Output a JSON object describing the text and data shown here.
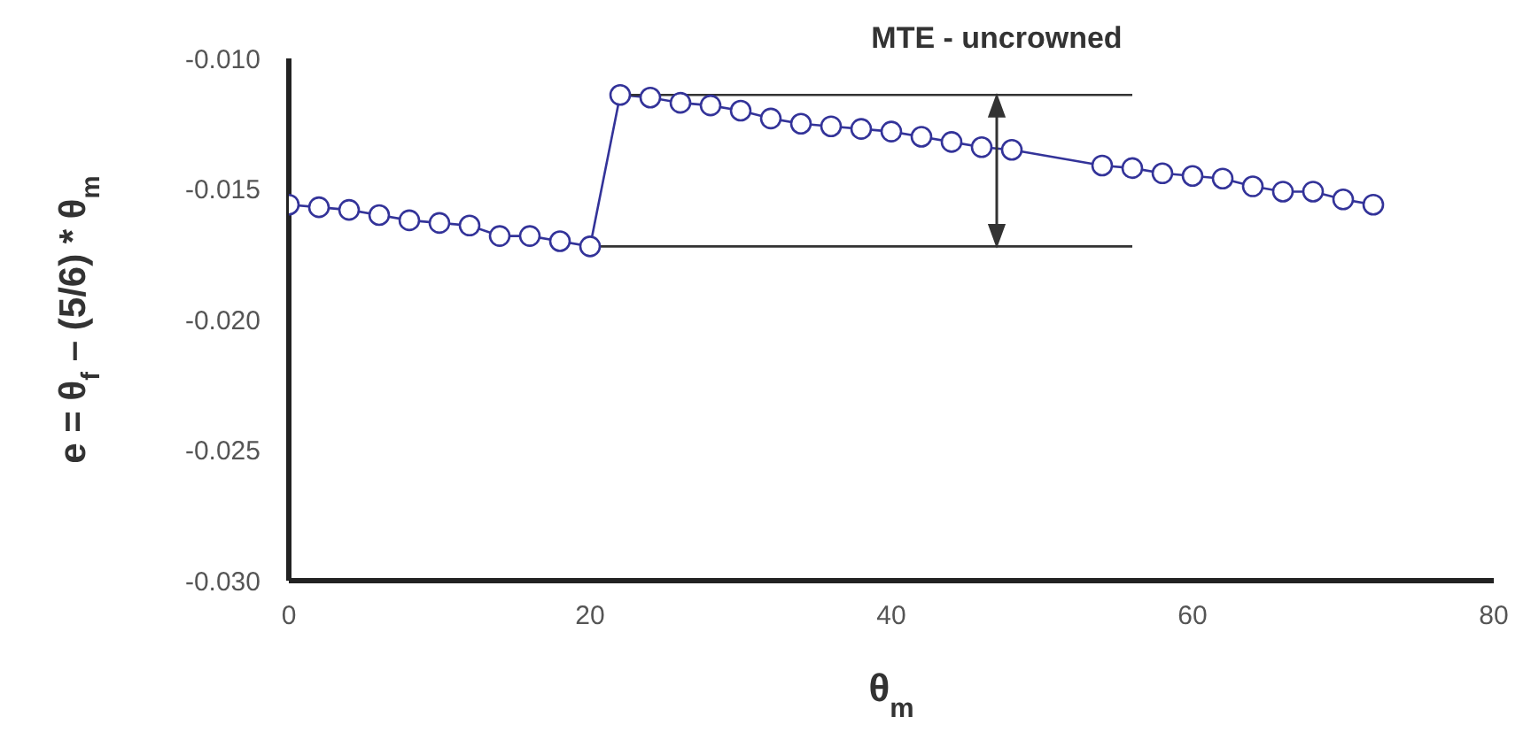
{
  "chart_data": {
    "type": "line",
    "xlabel": "θ$_{m}$",
    "ylabel": "e = θ$_{f}$ – (5/6) * θ$_{m}$",
    "annotations": [
      "MTE - uncrowned"
    ],
    "x": [
      0,
      2,
      4,
      6,
      8,
      10,
      12,
      14,
      16,
      18,
      20,
      22,
      24,
      26,
      28,
      30,
      32,
      34,
      36,
      38,
      40,
      42,
      44,
      46,
      48,
      54,
      56,
      58,
      60,
      62,
      64,
      66,
      68,
      70,
      72
    ],
    "series": [
      {
        "color": "#333399",
        "values": [
          -0.0156,
          -0.0157,
          -0.0158,
          -0.016,
          -0.0162,
          -0.0163,
          -0.0164,
          -0.0168,
          -0.0168,
          -0.017,
          -0.0172,
          -0.0114,
          -0.0115,
          -0.0117,
          -0.0118,
          -0.012,
          -0.0123,
          -0.0125,
          -0.0126,
          -0.0127,
          -0.0128,
          -0.013,
          -0.0132,
          -0.0134,
          -0.0135,
          -0.0141,
          -0.0142,
          -0.0144,
          -0.0145,
          -0.0146,
          -0.0149,
          -0.0151,
          -0.0151,
          -0.0154,
          -0.0156
        ]
      },
      {
        "type": "line",
        "marker": "none",
        "color": "#333333",
        "x": [
          22,
          56
        ],
        "values": [
          -0.0114,
          -0.0114
        ]
      },
      {
        "type": "line",
        "marker": "none",
        "color": "#333333",
        "x": [
          20,
          56
        ],
        "values": [
          -0.0172,
          -0.0172
        ]
      }
    ],
    "xlim": [
      0,
      80
    ],
    "xticks": [
      0,
      20,
      40,
      60,
      80
    ],
    "ylim": [
      -0.03,
      -0.01
    ],
    "yticks": [
      {
        "value": -0.03,
        "label": "-0.030"
      },
      {
        "value": -0.025,
        "label": "-0.025"
      },
      {
        "value": -0.02,
        "label": "-0.020"
      },
      {
        "value": -0.015,
        "label": "-0.015"
      },
      {
        "value": -0.01,
        "label": "-0.010"
      }
    ],
    "grid": false,
    "legend": false,
    "marker": "circle",
    "line_style": "solid"
  }
}
